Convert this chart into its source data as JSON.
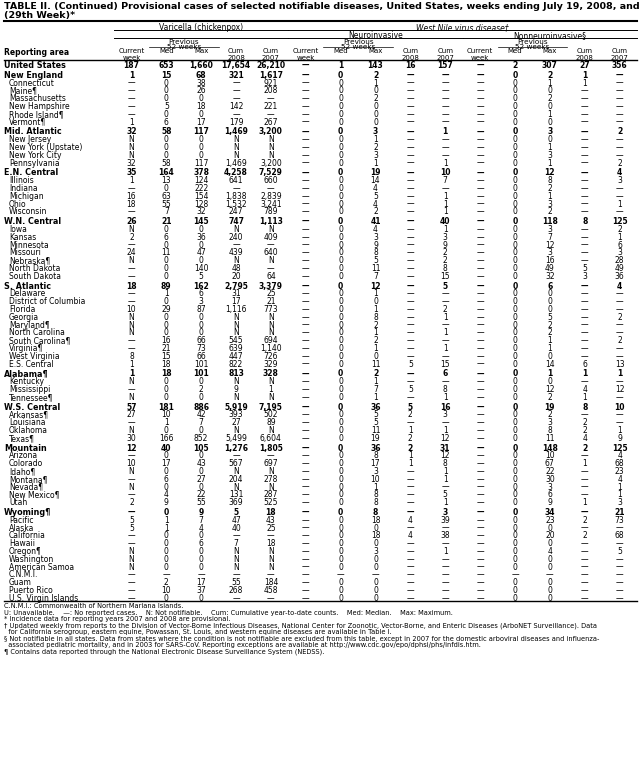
{
  "title_line1": "TABLE II. (Continued) Provisional cases of selected notifiable diseases, United States, weeks ending July 19, 2008, and July 21, 2007",
  "title_line2": "(29th Week)*",
  "rows": [
    [
      "United States",
      "187",
      "653",
      "1,660",
      "17,654",
      "26,210",
      "—",
      "1",
      "143",
      "16",
      "157",
      "—",
      "2",
      "307",
      "27",
      "356"
    ],
    [
      "New England",
      "1",
      "15",
      "68",
      "321",
      "1,617",
      "—",
      "0",
      "2",
      "—",
      "—",
      "—",
      "0",
      "2",
      "1",
      "—"
    ],
    [
      "Connecticut",
      "—",
      "0",
      "38",
      "—",
      "921",
      "—",
      "0",
      "1",
      "—",
      "—",
      "—",
      "0",
      "1",
      "1",
      "—"
    ],
    [
      "Maine¶",
      "—",
      "0",
      "26",
      "—",
      "208",
      "—",
      "0",
      "0",
      "—",
      "—",
      "—",
      "0",
      "0",
      "—",
      "—"
    ],
    [
      "Massachusetts",
      "—",
      "0",
      "0",
      "—",
      "—",
      "—",
      "0",
      "2",
      "—",
      "—",
      "—",
      "0",
      "2",
      "—",
      "—"
    ],
    [
      "New Hampshire",
      "—",
      "5",
      "18",
      "142",
      "221",
      "—",
      "0",
      "0",
      "—",
      "—",
      "—",
      "0",
      "0",
      "—",
      "—"
    ],
    [
      "Rhode Island¶",
      "—",
      "0",
      "0",
      "—",
      "—",
      "—",
      "0",
      "0",
      "—",
      "—",
      "—",
      "0",
      "1",
      "—",
      "—"
    ],
    [
      "Vermont¶",
      "1",
      "6",
      "17",
      "179",
      "267",
      "—",
      "0",
      "0",
      "—",
      "—",
      "—",
      "0",
      "0",
      "—",
      "—"
    ],
    [
      "Mid. Atlantic",
      "32",
      "58",
      "117",
      "1,469",
      "3,200",
      "—",
      "0",
      "3",
      "—",
      "1",
      "—",
      "0",
      "3",
      "—",
      "2"
    ],
    [
      "New Jersey",
      "N",
      "0",
      "0",
      "N",
      "N",
      "—",
      "0",
      "1",
      "—",
      "—",
      "—",
      "0",
      "0",
      "—",
      "—"
    ],
    [
      "New York (Upstate)",
      "N",
      "0",
      "0",
      "N",
      "N",
      "—",
      "0",
      "2",
      "—",
      "—",
      "—",
      "0",
      "1",
      "—",
      "—"
    ],
    [
      "New York City",
      "N",
      "0",
      "0",
      "N",
      "N",
      "—",
      "0",
      "3",
      "—",
      "—",
      "—",
      "0",
      "3",
      "—",
      "—"
    ],
    [
      "Pennsylvania",
      "32",
      "58",
      "117",
      "1,469",
      "3,200",
      "—",
      "0",
      "1",
      "—",
      "1",
      "—",
      "0",
      "1",
      "—",
      "2"
    ],
    [
      "E.N. Central",
      "35",
      "164",
      "378",
      "4,258",
      "7,529",
      "—",
      "0",
      "19",
      "—",
      "10",
      "—",
      "0",
      "12",
      "—",
      "4"
    ],
    [
      "Illinois",
      "1",
      "13",
      "124",
      "641",
      "660",
      "—",
      "0",
      "14",
      "—",
      "7",
      "—",
      "0",
      "8",
      "—",
      "3"
    ],
    [
      "Indiana",
      "—",
      "0",
      "222",
      "—",
      "—",
      "—",
      "0",
      "4",
      "—",
      "—",
      "—",
      "0",
      "2",
      "—",
      "—"
    ],
    [
      "Michigan",
      "16",
      "63",
      "154",
      "1,838",
      "2,839",
      "—",
      "0",
      "5",
      "—",
      "1",
      "—",
      "0",
      "1",
      "—",
      "—"
    ],
    [
      "Ohio",
      "18",
      "55",
      "128",
      "1,532",
      "3,241",
      "—",
      "0",
      "4",
      "—",
      "1",
      "—",
      "0",
      "3",
      "—",
      "1"
    ],
    [
      "Wisconsin",
      "—",
      "7",
      "32",
      "247",
      "789",
      "—",
      "0",
      "2",
      "—",
      "1",
      "—",
      "0",
      "2",
      "—",
      "—"
    ],
    [
      "W.N. Central",
      "26",
      "21",
      "145",
      "747",
      "1,113",
      "—",
      "0",
      "41",
      "—",
      "40",
      "—",
      "0",
      "118",
      "8",
      "125"
    ],
    [
      "Iowa",
      "N",
      "0",
      "0",
      "N",
      "N",
      "—",
      "0",
      "4",
      "—",
      "1",
      "—",
      "0",
      "3",
      "—",
      "2"
    ],
    [
      "Kansas",
      "2",
      "6",
      "36",
      "240",
      "409",
      "—",
      "0",
      "3",
      "—",
      "3",
      "—",
      "0",
      "7",
      "—",
      "1"
    ],
    [
      "Minnesota",
      "—",
      "0",
      "0",
      "—",
      "—",
      "—",
      "0",
      "9",
      "—",
      "9",
      "—",
      "0",
      "12",
      "—",
      "6"
    ],
    [
      "Missouri",
      "24",
      "11",
      "47",
      "439",
      "640",
      "—",
      "0",
      "8",
      "—",
      "2",
      "—",
      "0",
      "3",
      "—",
      "3"
    ],
    [
      "Nebraska¶",
      "N",
      "0",
      "0",
      "N",
      "N",
      "—",
      "0",
      "5",
      "—",
      "2",
      "—",
      "0",
      "16",
      "—",
      "28"
    ],
    [
      "North Dakota",
      "—",
      "0",
      "140",
      "48",
      "—",
      "—",
      "0",
      "11",
      "—",
      "8",
      "—",
      "0",
      "49",
      "5",
      "49"
    ],
    [
      "South Dakota",
      "—",
      "0",
      "5",
      "20",
      "64",
      "—",
      "0",
      "7",
      "—",
      "15",
      "—",
      "0",
      "32",
      "3",
      "36"
    ],
    [
      "S. Atlantic",
      "18",
      "89",
      "162",
      "2,795",
      "3,379",
      "—",
      "0",
      "12",
      "—",
      "5",
      "—",
      "0",
      "6",
      "—",
      "4"
    ],
    [
      "Delaware",
      "—",
      "1",
      "6",
      "31",
      "25",
      "—",
      "0",
      "1",
      "—",
      "—",
      "—",
      "0",
      "0",
      "—",
      "—"
    ],
    [
      "District of Columbia",
      "—",
      "0",
      "3",
      "17",
      "21",
      "—",
      "0",
      "0",
      "—",
      "—",
      "—",
      "0",
      "0",
      "—",
      "—"
    ],
    [
      "Florida",
      "10",
      "29",
      "87",
      "1,116",
      "773",
      "—",
      "0",
      "1",
      "—",
      "2",
      "—",
      "0",
      "0",
      "—",
      "—"
    ],
    [
      "Georgia",
      "N",
      "0",
      "0",
      "N",
      "N",
      "—",
      "0",
      "8",
      "—",
      "1",
      "—",
      "0",
      "5",
      "—",
      "2"
    ],
    [
      "Maryland¶",
      "N",
      "0",
      "0",
      "N",
      "N",
      "—",
      "0",
      "2",
      "—",
      "—",
      "—",
      "0",
      "2",
      "—",
      "—"
    ],
    [
      "North Carolina",
      "N",
      "0",
      "0",
      "N",
      "N",
      "—",
      "0",
      "1",
      "—",
      "1",
      "—",
      "0",
      "2",
      "—",
      "—"
    ],
    [
      "South Carolina¶",
      "—",
      "16",
      "66",
      "545",
      "694",
      "—",
      "0",
      "2",
      "—",
      "—",
      "—",
      "0",
      "1",
      "—",
      "2"
    ],
    [
      "Virginia¶",
      "—",
      "21",
      "73",
      "639",
      "1,140",
      "—",
      "0",
      "1",
      "—",
      "1",
      "—",
      "0",
      "1",
      "—",
      "—"
    ],
    [
      "West Virginia",
      "8",
      "15",
      "66",
      "447",
      "726",
      "—",
      "0",
      "0",
      "—",
      "—",
      "—",
      "0",
      "0",
      "—",
      "—"
    ],
    [
      "E.S. Central",
      "1",
      "18",
      "101",
      "822",
      "329",
      "—",
      "0",
      "11",
      "5",
      "15",
      "—",
      "0",
      "14",
      "6",
      "13"
    ],
    [
      "Alabama¶",
      "1",
      "18",
      "101",
      "813",
      "328",
      "—",
      "0",
      "2",
      "—",
      "6",
      "—",
      "0",
      "1",
      "1",
      "1"
    ],
    [
      "Kentucky",
      "N",
      "0",
      "0",
      "N",
      "N",
      "—",
      "0",
      "1",
      "—",
      "—",
      "—",
      "0",
      "0",
      "—",
      "—"
    ],
    [
      "Mississippi",
      "—",
      "0",
      "2",
      "9",
      "1",
      "—",
      "0",
      "7",
      "5",
      "8",
      "—",
      "0",
      "12",
      "4",
      "12"
    ],
    [
      "Tennessee¶",
      "N",
      "0",
      "0",
      "N",
      "N",
      "—",
      "0",
      "1",
      "—",
      "1",
      "—",
      "0",
      "2",
      "1",
      "—"
    ],
    [
      "W.S. Central",
      "57",
      "181",
      "886",
      "5,919",
      "7,195",
      "—",
      "0",
      "36",
      "5",
      "16",
      "—",
      "0",
      "19",
      "8",
      "10"
    ],
    [
      "Arkansas¶",
      "27",
      "10",
      "42",
      "393",
      "502",
      "—",
      "0",
      "5",
      "2",
      "3",
      "—",
      "0",
      "2",
      "—",
      "—"
    ],
    [
      "Louisiana",
      "—",
      "1",
      "7",
      "27",
      "89",
      "—",
      "0",
      "5",
      "—",
      "—",
      "—",
      "0",
      "3",
      "2",
      "—"
    ],
    [
      "Oklahoma",
      "N",
      "0",
      "0",
      "N",
      "N",
      "—",
      "0",
      "11",
      "1",
      "1",
      "—",
      "0",
      "8",
      "2",
      "1"
    ],
    [
      "Texas¶",
      "30",
      "166",
      "852",
      "5,499",
      "6,604",
      "—",
      "0",
      "19",
      "2",
      "12",
      "—",
      "0",
      "11",
      "4",
      "9"
    ],
    [
      "Mountain",
      "12",
      "40",
      "105",
      "1,276",
      "1,805",
      "—",
      "0",
      "36",
      "2",
      "31",
      "—",
      "0",
      "148",
      "2",
      "125"
    ],
    [
      "Arizona",
      "—",
      "0",
      "0",
      "—",
      "—",
      "—",
      "0",
      "8",
      "1",
      "12",
      "—",
      "0",
      "10",
      "—",
      "4"
    ],
    [
      "Colorado",
      "10",
      "17",
      "43",
      "567",
      "697",
      "—",
      "0",
      "17",
      "1",
      "8",
      "—",
      "0",
      "67",
      "1",
      "68"
    ],
    [
      "Idaho¶",
      "N",
      "0",
      "0",
      "N",
      "N",
      "—",
      "0",
      "3",
      "—",
      "1",
      "—",
      "0",
      "22",
      "—",
      "23"
    ],
    [
      "Montana¶",
      "—",
      "6",
      "27",
      "204",
      "278",
      "—",
      "0",
      "10",
      "—",
      "1",
      "—",
      "0",
      "30",
      "—",
      "4"
    ],
    [
      "Nevada¶",
      "N",
      "0",
      "0",
      "N",
      "N",
      "—",
      "0",
      "1",
      "—",
      "—",
      "—",
      "0",
      "3",
      "—",
      "1"
    ],
    [
      "New Mexico¶",
      "—",
      "4",
      "22",
      "131",
      "287",
      "—",
      "0",
      "8",
      "—",
      "5",
      "—",
      "0",
      "6",
      "—",
      "1"
    ],
    [
      "Utah",
      "2",
      "9",
      "55",
      "369",
      "525",
      "—",
      "0",
      "8",
      "—",
      "1",
      "—",
      "0",
      "9",
      "1",
      "3"
    ],
    [
      "Wyoming¶",
      "—",
      "0",
      "9",
      "5",
      "18",
      "—",
      "0",
      "8",
      "—",
      "3",
      "—",
      "0",
      "34",
      "—",
      "21"
    ],
    [
      "Pacific",
      "5",
      "1",
      "7",
      "47",
      "43",
      "—",
      "0",
      "18",
      "4",
      "39",
      "—",
      "0",
      "23",
      "2",
      "73"
    ],
    [
      "Alaska",
      "5",
      "1",
      "4",
      "40",
      "25",
      "—",
      "0",
      "0",
      "—",
      "—",
      "—",
      "0",
      "0",
      "—",
      "—"
    ],
    [
      "California",
      "—",
      "0",
      "0",
      "—",
      "—",
      "—",
      "0",
      "18",
      "4",
      "38",
      "—",
      "0",
      "20",
      "2",
      "68"
    ],
    [
      "Hawaii",
      "—",
      "0",
      "6",
      "7",
      "18",
      "—",
      "0",
      "0",
      "—",
      "—",
      "—",
      "0",
      "0",
      "—",
      "—"
    ],
    [
      "Oregon¶",
      "N",
      "0",
      "0",
      "N",
      "N",
      "—",
      "0",
      "3",
      "—",
      "1",
      "—",
      "0",
      "4",
      "—",
      "5"
    ],
    [
      "Washington",
      "N",
      "0",
      "0",
      "N",
      "N",
      "—",
      "0",
      "0",
      "—",
      "—",
      "—",
      "0",
      "0",
      "—",
      "—"
    ],
    [
      "American Samoa",
      "N",
      "0",
      "0",
      "N",
      "N",
      "—",
      "0",
      "0",
      "—",
      "—",
      "—",
      "0",
      "0",
      "—",
      "—"
    ],
    [
      "C.N.M.I.",
      "—",
      "—",
      "—",
      "—",
      "—",
      "—",
      "—",
      "—",
      "—",
      "—",
      "—",
      "—",
      "—",
      "—",
      "—"
    ],
    [
      "Guam",
      "—",
      "2",
      "17",
      "55",
      "184",
      "—",
      "0",
      "0",
      "—",
      "—",
      "—",
      "0",
      "0",
      "—",
      "—"
    ],
    [
      "Puerto Rico",
      "—",
      "10",
      "37",
      "268",
      "458",
      "—",
      "0",
      "0",
      "—",
      "—",
      "—",
      "0",
      "0",
      "—",
      "—"
    ],
    [
      "U.S. Virgin Islands",
      "—",
      "0",
      "0",
      "—",
      "—",
      "—",
      "0",
      "0",
      "—",
      "—",
      "—",
      "0",
      "0",
      "—",
      "—"
    ]
  ],
  "bold_rows": [
    0,
    1,
    8,
    13,
    19,
    27,
    38,
    42,
    47,
    55
  ],
  "section_gaps_before": [
    1,
    8,
    13,
    19,
    27,
    38,
    42,
    47,
    55
  ],
  "footnotes": [
    "C.N.M.I.: Commonwealth of Northern Mariana Islands.",
    "U: Unavailable.    —: No reported cases.    N: Not notifiable.    Cum: Cumulative year-to-date counts.    Med: Median.    Max: Maximum.",
    "* Incidence data for reporting years 2007 and 2008 are provisional.",
    "† Updated weekly from reports to the Division of Vector-Borne Infectious Diseases, National Center for Zoonotic, Vector-Borne, and Enteric Diseases (ArboNET Surveillance). Data",
    "  for California serogroup, eastern equine, Powassan, St. Louis, and western equine diseases are available in Table I.",
    "§ Not notifiable in all states. Data from states where the condition is not notifiable are excluded from this table, except in 2007 for the domestic arboviral diseases and influenza-",
    "  associated pediatric mortality, and in 2003 for SARS-CoV. Reporting exceptions are available at http://www.cdc.gov/epo/dphsi/phs/infdis.htm.",
    "¶ Contains data reported through the National Electronic Disease Surveillance System (NEDSS)."
  ]
}
